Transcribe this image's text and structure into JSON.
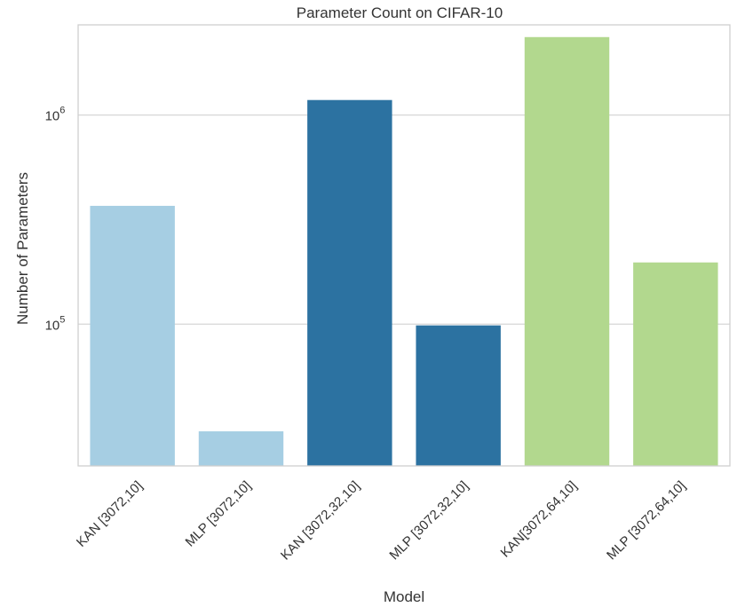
{
  "chart_data": {
    "type": "bar",
    "title": "Parameter Count on CIFAR-10",
    "xlabel": "Model",
    "ylabel": "Number of Parameters",
    "yscale": "log",
    "ylim": [
      21000,
      2700000
    ],
    "yticks": [
      {
        "value": 100000,
        "base": "10",
        "exp": "5"
      },
      {
        "value": 1000000,
        "base": "10",
        "exp": "6"
      }
    ],
    "grid": "horizontal",
    "categories": [
      "KAN [3072,10]",
      "MLP [3072,10]",
      "KAN [3072,32,10]",
      "MLP [3072,32,10]",
      "KAN[3072,64,10]",
      "MLP [3072,64,10]"
    ],
    "values": [
      368000,
      30730,
      1180000,
      98666,
      2360000,
      197322
    ],
    "colors": [
      "#a6cee3",
      "#a6cee3",
      "#2c72a1",
      "#2c72a1",
      "#b2d88e",
      "#b2d88e"
    ]
  }
}
